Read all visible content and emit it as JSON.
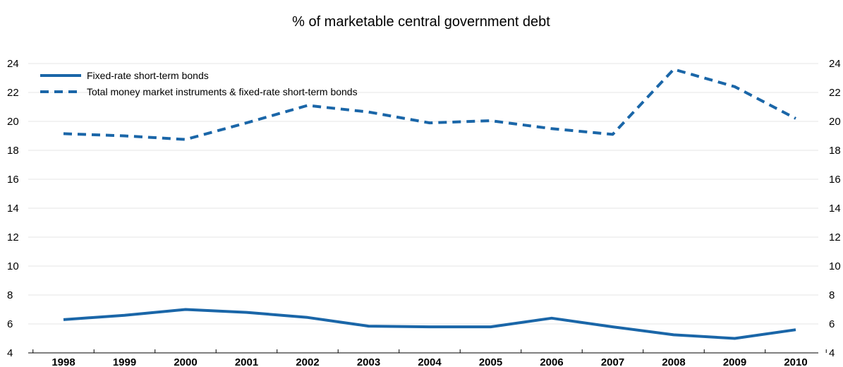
{
  "chart_data": {
    "type": "line",
    "title": "% of marketable central government debt",
    "xlabel": "",
    "ylabel": "",
    "ylim": [
      4,
      24
    ],
    "y_ticks": [
      4,
      6,
      8,
      10,
      12,
      14,
      16,
      18,
      20,
      22,
      24
    ],
    "y_axes": [
      "left",
      "right"
    ],
    "grid": true,
    "legend_placement": "top-left",
    "categories": [
      "1998",
      "1999",
      "2000",
      "2001",
      "2002",
      "2003",
      "2004",
      "2005",
      "2006",
      "2007",
      "2008",
      "2009",
      "2010"
    ],
    "series": [
      {
        "name": "Fixed-rate short-term bonds",
        "style": "solid",
        "color": "#1a66a8",
        "values": [
          6.3,
          6.6,
          7.0,
          6.8,
          6.45,
          5.85,
          5.8,
          5.8,
          6.4,
          5.8,
          5.25,
          5.0,
          5.6
        ]
      },
      {
        "name": "Total money market instruments & fixed-rate short-term bonds",
        "style": "dashed",
        "color": "#1a66a8",
        "values": [
          19.15,
          19.0,
          18.75,
          19.9,
          21.1,
          20.65,
          19.9,
          20.05,
          19.5,
          19.1,
          23.6,
          22.4,
          20.2
        ]
      }
    ]
  }
}
